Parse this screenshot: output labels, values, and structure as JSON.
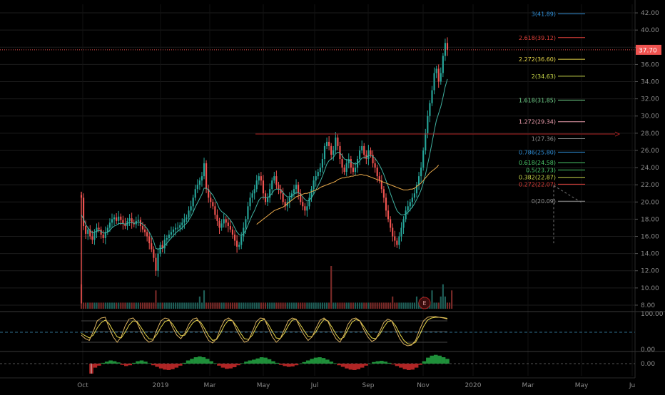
{
  "chart_data": [
    {
      "type": "line",
      "panel": "price",
      "description_style": "candlestick",
      "y_ticks": [
        "42.00",
        "40.00",
        "38.00",
        "36.00",
        "34.00",
        "32.00",
        "30.00",
        "28.00",
        "26.00",
        "24.00",
        "22.00",
        "20.00",
        "18.00",
        "16.00",
        "14.00",
        "12.00",
        "10.00",
        "8.00"
      ],
      "ylim": [
        7.5,
        43
      ],
      "x_ticks": [
        "Oct",
        "2019",
        "Mar",
        "May",
        "Jul",
        "Sep",
        "Nov",
        "2020",
        "Mar",
        "May",
        "Ju"
      ],
      "last_price": "37.70",
      "closes": [
        20.5,
        17.2,
        16.3,
        16.8,
        16.0,
        15.6,
        16.5,
        17.0,
        16.8,
        16.2,
        15.8,
        16.5,
        17.0,
        17.6,
        18.0,
        18.2,
        17.8,
        18.3,
        17.9,
        17.5,
        17.2,
        17.8,
        18.1,
        17.6,
        17.4,
        17.8,
        17.9,
        17.2,
        16.8,
        16.5,
        16.0,
        15.2,
        14.5,
        13.5,
        12.0,
        14.0,
        15.0,
        14.6,
        15.6,
        15.8,
        16.2,
        16.5,
        16.8,
        17.0,
        17.0,
        17.3,
        17.6,
        18.0,
        18.2,
        19.0,
        19.5,
        20.5,
        21.5,
        22.0,
        22.5,
        23.0,
        24.5,
        21.5,
        20.5,
        20.0,
        19.5,
        18.5,
        17.8,
        17.0,
        17.5,
        18.0,
        17.6,
        17.2,
        16.8,
        16.2,
        15.5,
        14.8,
        15.0,
        16.0,
        17.0,
        18.0,
        19.5,
        20.5,
        21.0,
        21.5,
        22.5,
        23.0,
        22.5,
        21.0,
        20.0,
        20.5,
        21.5,
        22.5,
        23.0,
        22.0,
        21.5,
        21.0,
        20.0,
        19.5,
        20.0,
        20.5,
        21.0,
        21.5,
        22.0,
        21.0,
        20.0,
        19.5,
        19.0,
        19.5,
        20.5,
        21.5,
        22.5,
        23.0,
        23.5,
        24.0,
        25.0,
        26.5,
        27.0,
        26.5,
        25.5,
        26.0,
        27.5,
        26.5,
        25.0,
        24.0,
        23.5,
        24.5,
        25.0,
        24.0,
        23.5,
        24.0,
        25.0,
        26.0,
        26.5,
        25.5,
        25.0,
        26.0,
        25.5,
        24.5,
        24.0,
        23.0,
        22.5,
        21.5,
        20.5,
        19.0,
        18.0,
        17.0,
        16.0,
        15.5,
        15.0,
        16.0,
        17.0,
        18.0,
        19.0,
        19.5,
        20.0,
        20.5,
        21.0,
        22.0,
        23.0,
        24.0,
        26.0,
        28.0,
        30.0,
        31.5,
        33.0,
        35.0,
        35.5,
        34.0,
        35.0,
        37.0,
        38.5,
        37.7
      ],
      "ma_fast": [
        18.5,
        18.0,
        17.4,
        17.0,
        16.7,
        16.4,
        16.5,
        16.6,
        16.7,
        16.6,
        16.4,
        16.4,
        16.5,
        16.7,
        17.0,
        17.2,
        17.3,
        17.5,
        17.5,
        17.5,
        17.4,
        17.5,
        17.6,
        17.6,
        17.5,
        17.6,
        17.7,
        17.6,
        17.4,
        17.2,
        16.9,
        16.5,
        16.0,
        15.4,
        14.6,
        14.5,
        14.6,
        14.6,
        14.9,
        15.2,
        15.5,
        15.8,
        16.1,
        16.4,
        16.6,
        16.8,
        17.0,
        17.3,
        17.5,
        17.9,
        18.3,
        18.8,
        19.4,
        19.9,
        20.4,
        20.9,
        21.6,
        21.6,
        21.4,
        21.1,
        20.8,
        20.3,
        19.8,
        19.2,
        18.9,
        18.7,
        18.5,
        18.2,
        17.9,
        17.5,
        17.0,
        16.5,
        16.2,
        16.1,
        16.3,
        16.7,
        17.3,
        17.9,
        18.5,
        19.0,
        19.6,
        20.2,
        20.5,
        20.6,
        20.5,
        20.5,
        20.7,
        21.0,
        21.4,
        21.5,
        21.5,
        21.4,
        21.1,
        20.8,
        20.6,
        20.6,
        20.7,
        20.9,
        21.1,
        21.1,
        20.9,
        20.6,
        20.3,
        20.1,
        20.2,
        20.5,
        20.9,
        21.4,
        21.9,
        22.4,
        23.0,
        23.7,
        24.4,
        24.8,
        25.0,
        25.2,
        25.6,
        25.8,
        25.7,
        25.4,
        25.0,
        24.9,
        24.9,
        24.7,
        24.5,
        24.4,
        24.5,
        24.8,
        25.1,
        25.2,
        25.2,
        25.4,
        25.4,
        25.3,
        25.1,
        24.7,
        24.3,
        23.8,
        23.2,
        22.5,
        21.8,
        21.0,
        20.3,
        19.6,
        19.0,
        18.7,
        18.5,
        18.5,
        18.6,
        18.8,
        19.1,
        19.4,
        19.8,
        20.3,
        20.8,
        21.4,
        22.2,
        23.2,
        24.4,
        25.6,
        26.9,
        28.3,
        29.5,
        30.3,
        31.1,
        32.2,
        33.4,
        34.3
      ],
      "ma_slow": [
        null,
        null,
        null,
        null,
        null,
        null,
        null,
        null,
        null,
        null,
        null,
        null,
        null,
        null,
        null,
        null,
        null,
        null,
        null,
        null,
        null,
        null,
        null,
        null,
        null,
        null,
        null,
        null,
        null,
        null,
        null,
        null,
        null,
        null,
        null,
        null,
        null,
        null,
        null,
        null,
        null,
        null,
        null,
        null,
        null,
        null,
        null,
        null,
        null,
        null,
        null,
        null,
        null,
        null,
        null,
        null,
        null,
        null,
        null,
        null,
        null,
        null,
        null,
        null,
        null,
        null,
        null,
        null,
        null,
        null,
        null,
        null,
        null,
        null,
        null,
        null,
        null,
        null,
        null,
        null,
        17.4,
        17.6,
        17.8,
        18.0,
        18.2,
        18.4,
        18.6,
        18.8,
        19.0,
        19.1,
        19.2,
        19.3,
        19.4,
        19.6,
        19.8,
        20.0,
        20.2,
        20.4,
        20.6,
        20.7,
        20.8,
        20.9,
        21.0,
        21.0,
        21.1,
        21.2,
        21.3,
        21.4,
        21.5,
        21.7,
        21.8,
        21.9,
        22.0,
        22.1,
        22.2,
        22.3,
        22.4,
        22.6,
        22.7,
        22.8,
        22.8,
        22.9,
        22.9,
        23.0,
        23.0,
        23.1,
        23.1,
        23.2,
        23.2,
        23.1,
        23.1,
        23.0,
        22.9,
        22.8,
        22.7,
        22.6,
        22.5,
        22.4,
        22.3,
        22.2,
        22.1,
        22.0,
        21.9,
        21.8,
        21.7,
        21.6,
        21.5,
        21.4,
        21.4,
        21.4,
        21.5,
        21.5,
        21.6,
        21.8,
        22.0,
        22.2,
        22.5,
        22.8,
        23.1,
        23.4,
        23.6,
        23.8,
        24.0,
        24.3
      ],
      "volumes": [
        4,
        1,
        1,
        1,
        1,
        1,
        1,
        1,
        1,
        1,
        1,
        1,
        1,
        1,
        1,
        1,
        1,
        1,
        1,
        1,
        1,
        1,
        1,
        1,
        1,
        1,
        1,
        1,
        1,
        1,
        1,
        1,
        1,
        1,
        3,
        1,
        1,
        1,
        1,
        1,
        1,
        1,
        1,
        1,
        1,
        1,
        1,
        1,
        1,
        1,
        1,
        1,
        1,
        1,
        2,
        1,
        3,
        1,
        1,
        1,
        1,
        1,
        1,
        1,
        1,
        1,
        1,
        1,
        1,
        1,
        1,
        1,
        1,
        1,
        1,
        1,
        1,
        1,
        1,
        1,
        1,
        1,
        1,
        1,
        1,
        1,
        1,
        1,
        1,
        1,
        1,
        1,
        1,
        1,
        1,
        1,
        1,
        1,
        1,
        1,
        1,
        1,
        1,
        1,
        1,
        1,
        1,
        1,
        1,
        1,
        1,
        1,
        1,
        1,
        7,
        1,
        1,
        1,
        1,
        1,
        1,
        1,
        1,
        1,
        1,
        1,
        1,
        1,
        1,
        1,
        1,
        1,
        1,
        1,
        1,
        1,
        1,
        1,
        1,
        1,
        1,
        1,
        2,
        1,
        1,
        1,
        1,
        1,
        1,
        1,
        1,
        1,
        1,
        2,
        1,
        1,
        2,
        1,
        1,
        1,
        3,
        1,
        1,
        1,
        2,
        4,
        2,
        1,
        1,
        3
      ]
    },
    {
      "type": "line",
      "panel": "oscillator",
      "y_ticks": [
        "100.00",
        "0.00"
      ],
      "series": [
        {
          "values": [
            40,
            30,
            25,
            50,
            80,
            88,
            90,
            60,
            35,
            20,
            35,
            65,
            85,
            88,
            75,
            50,
            30,
            20,
            25,
            55,
            80,
            88,
            85,
            60,
            40,
            30,
            45,
            70,
            85,
            88,
            70,
            45,
            25,
            18,
            30,
            60,
            82,
            88,
            80,
            55,
            35,
            20,
            25,
            50,
            78,
            88,
            86,
            60,
            35,
            20,
            30,
            55,
            80,
            88,
            85,
            60,
            40,
            25,
            35,
            60,
            82,
            88,
            78,
            50,
            30,
            20,
            40,
            70,
            85,
            88,
            80,
            55,
            35,
            22,
            28,
            50,
            75,
            85,
            80,
            55,
            30,
            15,
            10,
            12,
            25,
            55,
            80,
            90,
            92,
            92,
            90,
            88,
            85
          ]
        },
        {
          "values": [
            45,
            38,
            32,
            40,
            60,
            75,
            82,
            72,
            52,
            35,
            32,
            48,
            68,
            80,
            78,
            62,
            44,
            30,
            28,
            42,
            62,
            78,
            82,
            70,
            52,
            38,
            40,
            58,
            74,
            82,
            76,
            58,
            38,
            25,
            28,
            46,
            68,
            82,
            80,
            65,
            46,
            30,
            28,
            40,
            62,
            80,
            84,
            70,
            50,
            32,
            30,
            45,
            66,
            82,
            84,
            70,
            52,
            36,
            36,
            50,
            70,
            84,
            80,
            62,
            42,
            28,
            34,
            56,
            76,
            84,
            80,
            64,
            46,
            32,
            30,
            42,
            62,
            78,
            80,
            66,
            44,
            26,
            16,
            14,
            20,
            40,
            64,
            82,
            88,
            90,
            90,
            89,
            87
          ]
        }
      ]
    },
    {
      "type": "bar",
      "panel": "histogram",
      "y_ticks": [
        "0.00"
      ],
      "values": [
        -2.5,
        -1,
        -0.5,
        0.2,
        0.5,
        0.8,
        0.6,
        0.3,
        -0.3,
        -0.6,
        -0.4,
        0.2,
        0.6,
        0.8,
        0.5,
        0.1,
        -0.4,
        -0.8,
        -1.2,
        -1.5,
        -1.6,
        -1.4,
        -1,
        -0.5,
        0.2,
        0.8,
        1.2,
        1.6,
        1.8,
        1.6,
        1.2,
        0.6,
        0.1,
        -0.5,
        -1,
        -1.3,
        -1.2,
        -0.9,
        -0.4,
        0.1,
        0.5,
        0.8,
        1,
        1.3,
        1.6,
        1.5,
        1.1,
        0.6,
        0.2,
        -0.3,
        -0.6,
        -0.8,
        -0.7,
        -0.4,
        0,
        0.4,
        0.8,
        1.2,
        1.5,
        1.6,
        1.4,
        1,
        0.5,
        0.1,
        -0.4,
        -0.8,
        -1.2,
        -1.5,
        -1.6,
        -1.4,
        -1,
        -0.5,
        0,
        0.4,
        0.6,
        0.7,
        0.5,
        0.2,
        -0.2,
        -0.6,
        -1,
        -1.4,
        -1.6,
        -1.5,
        -1,
        -0.3,
        0.6,
        1.5,
        2,
        2.2,
        2,
        1.6,
        1.2
      ]
    }
  ],
  "fib_levels": [
    {
      "label": "3(41.89)",
      "value": 41.89,
      "color": "#2f8fd8"
    },
    {
      "label": "2.618(39.12)",
      "value": 39.12,
      "color": "#e0403a"
    },
    {
      "label": "2.272(36.60)",
      "value": 36.6,
      "color": "#e8d84a"
    },
    {
      "label": "2(34.63)",
      "value": 34.63,
      "color": "#c9d84a"
    },
    {
      "label": "1.618(31.85)",
      "value": 31.85,
      "color": "#70d08a"
    },
    {
      "label": "1.272(29.34)",
      "value": 29.34,
      "color": "#f0a0b0"
    },
    {
      "label": "1(27.36)",
      "value": 27.36,
      "color": "#909090"
    },
    {
      "label": "0.786(25.80)",
      "value": 25.8,
      "color": "#2f8fd8"
    },
    {
      "label": "0.618(24.58)",
      "value": 24.58,
      "color": "#4ac96a"
    },
    {
      "label": "0.5(23.73)",
      "value": 23.73,
      "color": "#4ac96a"
    },
    {
      "label": "0.382(22.87)",
      "value": 22.87,
      "color": "#c9d84a"
    },
    {
      "label": "0.272(22.07)",
      "value": 22.07,
      "color": "#e0403a"
    },
    {
      "label": "0(20.09)",
      "value": 20.09,
      "color": "#909090"
    }
  ],
  "horizontal_line_value": 27.9,
  "earnings_marker": "E",
  "colors": {
    "up": "#26a69a",
    "down": "#ef5350",
    "ma_fast": "#3fb0a0",
    "ma_slow": "#e8a84a",
    "price_line": "#ef5350",
    "osc_a": "#d8b060",
    "osc_b": "#e8d84a",
    "grid": "#1c1c1c",
    "axis_text": "#8a8a8a"
  }
}
